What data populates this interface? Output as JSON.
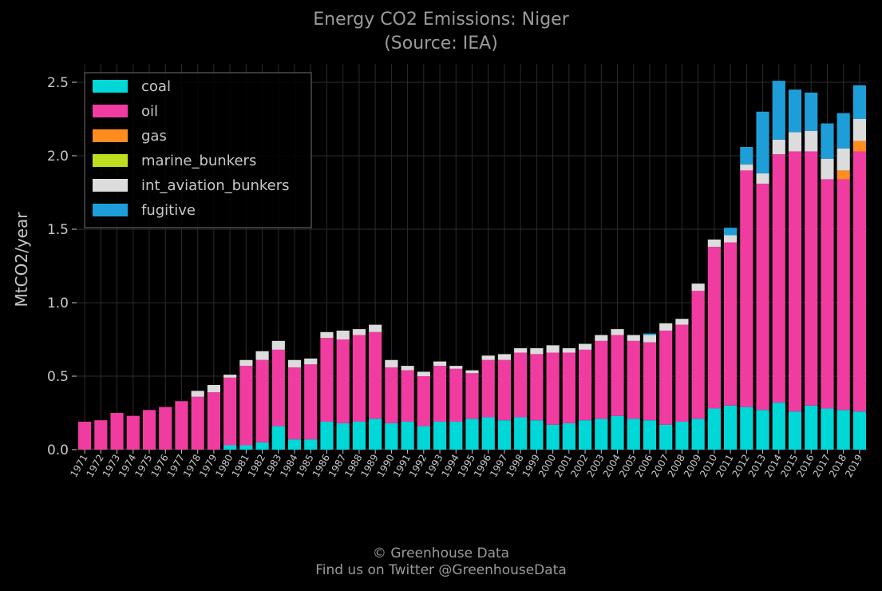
{
  "chart_data": {
    "type": "bar",
    "stacked": true,
    "title": "Energy CO2 Emissions: Niger",
    "subtitle": "(Source: IEA)",
    "xlabel": "",
    "ylabel": "MtCO2/year",
    "ylim": [
      0,
      2.6
    ],
    "yticks": [
      "0.0",
      "0.5",
      "1.0",
      "1.5",
      "2.0",
      "2.5"
    ],
    "grid": true,
    "legend_position": "top-left",
    "categories": [
      "1971",
      "1972",
      "1973",
      "1974",
      "1975",
      "1976",
      "1977",
      "1978",
      "1979",
      "1980",
      "1981",
      "1982",
      "1983",
      "1984",
      "1985",
      "1986",
      "1987",
      "1988",
      "1989",
      "1990",
      "1991",
      "1992",
      "1993",
      "1994",
      "1995",
      "1996",
      "1997",
      "1998",
      "1999",
      "2000",
      "2001",
      "2002",
      "2003",
      "2004",
      "2005",
      "2006",
      "2007",
      "2008",
      "2009",
      "2010",
      "2011",
      "2012",
      "2013",
      "2014",
      "2015",
      "2016",
      "2017",
      "2018",
      "2019"
    ],
    "series": [
      {
        "name": "coal",
        "color": "#00d7d7",
        "values": [
          0,
          0,
          0,
          0,
          0,
          0,
          0,
          0,
          0,
          0.03,
          0.03,
          0.05,
          0.16,
          0.07,
          0.07,
          0.19,
          0.18,
          0.19,
          0.21,
          0.18,
          0.19,
          0.16,
          0.19,
          0.19,
          0.21,
          0.22,
          0.2,
          0.22,
          0.2,
          0.17,
          0.18,
          0.2,
          0.21,
          0.23,
          0.21,
          0.2,
          0.17,
          0.19,
          0.21,
          0.28,
          0.3,
          0.29,
          0.27,
          0.32,
          0.26,
          0.3,
          0.28,
          0.27,
          0.26
        ]
      },
      {
        "name": "oil",
        "color": "#f03ca0",
        "values": [
          0.19,
          0.2,
          0.25,
          0.23,
          0.27,
          0.29,
          0.33,
          0.36,
          0.39,
          0.46,
          0.54,
          0.56,
          0.52,
          0.49,
          0.51,
          0.57,
          0.57,
          0.59,
          0.59,
          0.38,
          0.35,
          0.34,
          0.38,
          0.36,
          0.31,
          0.39,
          0.41,
          0.44,
          0.45,
          0.49,
          0.48,
          0.48,
          0.53,
          0.55,
          0.53,
          0.53,
          0.64,
          0.66,
          0.87,
          1.1,
          1.11,
          1.61,
          1.54,
          1.69,
          1.77,
          1.73,
          1.56,
          1.57,
          1.77
        ]
      },
      {
        "name": "gas",
        "color": "#ff8c1e",
        "values": [
          0,
          0,
          0,
          0,
          0,
          0,
          0,
          0,
          0,
          0,
          0,
          0,
          0,
          0,
          0,
          0,
          0,
          0,
          0,
          0,
          0,
          0,
          0,
          0,
          0,
          0,
          0,
          0,
          0,
          0,
          0,
          0,
          0,
          0,
          0,
          0,
          0,
          0,
          0,
          0,
          0,
          0,
          0,
          0,
          0,
          0,
          0,
          0.06,
          0.07
        ]
      },
      {
        "name": "marine_bunkers",
        "color": "#c0dc1e",
        "values": [
          0,
          0,
          0,
          0,
          0,
          0,
          0,
          0,
          0,
          0,
          0,
          0,
          0,
          0,
          0,
          0,
          0,
          0,
          0,
          0,
          0,
          0,
          0,
          0,
          0,
          0,
          0,
          0,
          0,
          0,
          0,
          0,
          0,
          0,
          0,
          0,
          0,
          0,
          0,
          0,
          0,
          0,
          0,
          0,
          0,
          0,
          0,
          0,
          0
        ]
      },
      {
        "name": "int_aviation_bunkers",
        "color": "#dcdcdc",
        "values": [
          0,
          0,
          0,
          0,
          0,
          0,
          0,
          0.04,
          0.05,
          0.02,
          0.04,
          0.06,
          0.06,
          0.05,
          0.04,
          0.04,
          0.06,
          0.04,
          0.05,
          0.05,
          0.03,
          0.03,
          0.03,
          0.02,
          0.02,
          0.03,
          0.04,
          0.03,
          0.04,
          0.05,
          0.03,
          0.04,
          0.04,
          0.04,
          0.04,
          0.05,
          0.05,
          0.04,
          0.05,
          0.05,
          0.05,
          0.04,
          0.07,
          0.1,
          0.13,
          0.14,
          0.14,
          0.15,
          0.15
        ]
      },
      {
        "name": "fugitive",
        "color": "#1e9ed8",
        "values": [
          0,
          0,
          0,
          0,
          0,
          0,
          0,
          0,
          0,
          0,
          0,
          0,
          0,
          0,
          0,
          0,
          0,
          0,
          0,
          0,
          0,
          0,
          0,
          0,
          0,
          0,
          0,
          0,
          0,
          0,
          0,
          0,
          0,
          0,
          0,
          0.01,
          0,
          0,
          0,
          0,
          0.05,
          0.12,
          0.42,
          0.4,
          0.29,
          0.26,
          0.24,
          0.24,
          0.23
        ]
      }
    ]
  },
  "footer": {
    "copyright": "© Greenhouse Data",
    "twitter": "Find us on Twitter @GreenhouseData"
  },
  "colors": {
    "background": "#000000",
    "grid": "#2b2b2b",
    "legend_border": "#4a4a4a"
  }
}
